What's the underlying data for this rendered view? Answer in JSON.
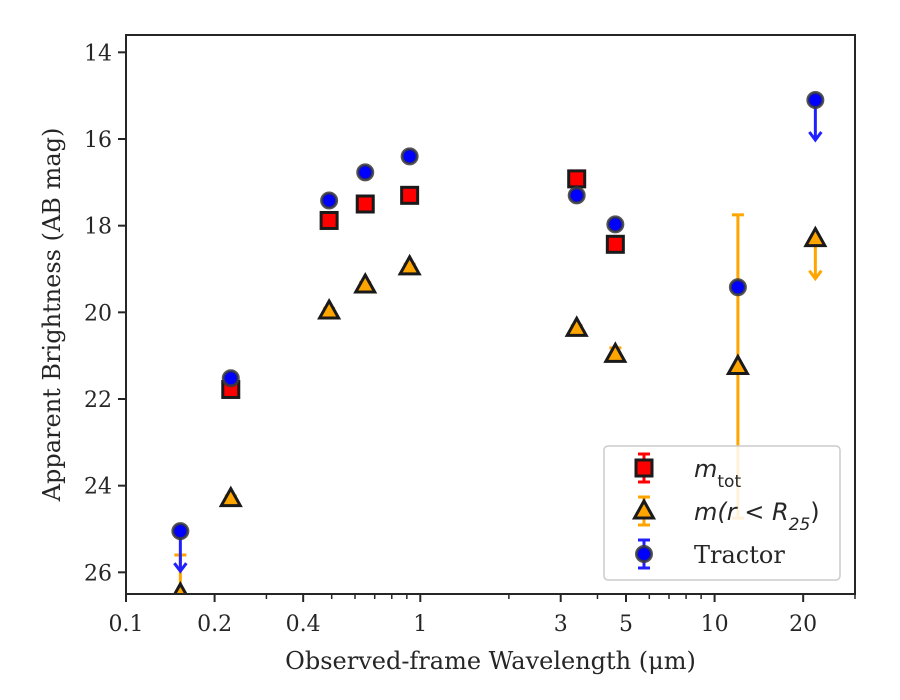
{
  "chart_data": {
    "type": "scatter",
    "xlabel": "Observed-frame Wavelength (μm)",
    "ylabel": "Apparent Brightness (AB mag)",
    "x_scale": "log",
    "xlim": [
      0.1,
      30
    ],
    "ylim": [
      26.5,
      13.6
    ],
    "y_inverted": true,
    "x_ticks": [
      {
        "value": 0.1,
        "label": "0.1"
      },
      {
        "value": 0.2,
        "label": "0.2"
      },
      {
        "value": 0.4,
        "label": "0.4"
      },
      {
        "value": 1,
        "label": "1"
      },
      {
        "value": 3,
        "label": "3"
      },
      {
        "value": 5,
        "label": "5"
      },
      {
        "value": 10,
        "label": "10"
      },
      {
        "value": 20,
        "label": "20"
      }
    ],
    "y_ticks": [
      {
        "value": 14,
        "label": "14"
      },
      {
        "value": 16,
        "label": "16"
      },
      {
        "value": 18,
        "label": "18"
      },
      {
        "value": 20,
        "label": "20"
      },
      {
        "value": 22,
        "label": "22"
      },
      {
        "value": 24,
        "label": "24"
      },
      {
        "value": 26,
        "label": "26"
      }
    ],
    "grid": false,
    "legend_position": "lower-right",
    "series": [
      {
        "name": "m_tot",
        "legend_main": "m",
        "legend_sub": "tot",
        "marker": "square",
        "color": "#ff0000",
        "errorbar_color": "#ff0000",
        "points": [
          {
            "x": 0.227,
            "y": 21.78,
            "err": 0.1
          },
          {
            "x": 0.49,
            "y": 17.88,
            "err": 0.08
          },
          {
            "x": 0.65,
            "y": 17.5,
            "err": 0.08
          },
          {
            "x": 0.92,
            "y": 17.3,
            "err": 0.08
          },
          {
            "x": 3.4,
            "y": 16.92,
            "err": 0.08
          },
          {
            "x": 4.6,
            "y": 18.43,
            "err": 0.08
          }
        ]
      },
      {
        "name": "m(r<R_25)",
        "legend_main": "m(r < R",
        "legend_sub": "25",
        "legend_tail": ")",
        "marker": "triangle",
        "color": "#ffa500",
        "errorbar_color": "#ffa500",
        "points": [
          {
            "x": 0.153,
            "y": 26.5,
            "err_low": 0.0,
            "err_high": 0.9,
            "upper_limit": false
          },
          {
            "x": 0.227,
            "y": 24.3,
            "err": 0.06
          },
          {
            "x": 0.49,
            "y": 19.97,
            "err": 0.06
          },
          {
            "x": 0.65,
            "y": 19.37,
            "err": 0.06
          },
          {
            "x": 0.92,
            "y": 18.95,
            "err": 0.06
          },
          {
            "x": 3.4,
            "y": 20.37,
            "err": 0.06
          },
          {
            "x": 4.6,
            "y": 20.97,
            "err": 0.15
          },
          {
            "x": 12,
            "y": 21.25,
            "err_low": 3.5,
            "err_high": 3.5
          },
          {
            "x": 22,
            "y": 18.3,
            "upper_limit": true
          }
        ]
      },
      {
        "name": "Tractor",
        "legend_main": "Tractor",
        "marker": "circle",
        "color": "#0000ff",
        "errorbar_color": "#2020ff",
        "points": [
          {
            "x": 0.153,
            "y": 25.05,
            "upper_limit": true
          },
          {
            "x": 0.227,
            "y": 21.52,
            "err": 0.05
          },
          {
            "x": 0.49,
            "y": 17.42,
            "err": 0.05
          },
          {
            "x": 0.65,
            "y": 16.77,
            "err": 0.05
          },
          {
            "x": 0.92,
            "y": 16.4,
            "err": 0.05
          },
          {
            "x": 3.4,
            "y": 17.3,
            "err": 0.05
          },
          {
            "x": 4.6,
            "y": 17.97,
            "err": 0.05
          },
          {
            "x": 12,
            "y": 19.42,
            "err": 0.05
          },
          {
            "x": 22,
            "y": 15.1,
            "upper_limit": true
          }
        ]
      }
    ]
  }
}
